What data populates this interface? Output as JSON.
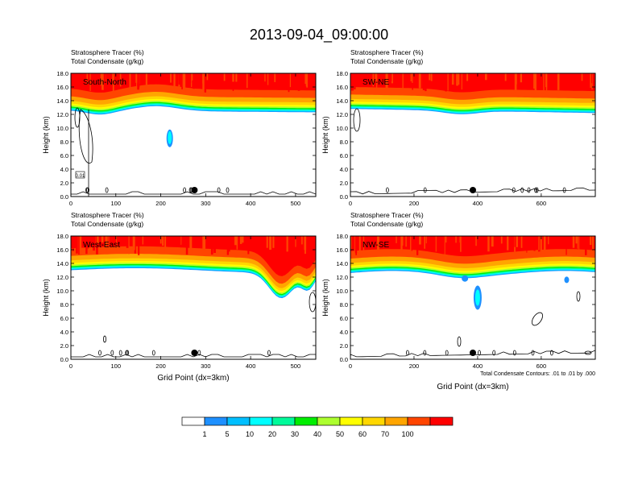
{
  "title": "2013-09-04_09:00:00",
  "colorbar": {
    "labels": [
      "1",
      "5",
      "10",
      "20",
      "30",
      "40",
      "50",
      "60",
      "70",
      "100"
    ],
    "colors": [
      "#ffffff",
      "#1e90ff",
      "#00bfff",
      "#00ffff",
      "#00fa9a",
      "#00ee00",
      "#adff2f",
      "#ffff00",
      "#ffd700",
      "#ffa500",
      "#ff4500",
      "#ff0000"
    ]
  },
  "chart_data": [
    {
      "type": "contour",
      "panel_label": "South-North",
      "subtitle_lines": [
        "Stratosphere Tracer   (%)",
        "Total Condensate   (g/kg)"
      ],
      "ylabel": "Height (km)",
      "xlabel": "",
      "xlim": [
        0,
        545
      ],
      "ylim": [
        0,
        18
      ],
      "xticks": [
        "0",
        "100",
        "200",
        "300",
        "400",
        "500"
      ],
      "yticks": [
        "0.0",
        "2.0",
        "4.0",
        "6.0",
        "8.0",
        "10.0",
        "12.0",
        "14.0",
        "16.0",
        "18.0"
      ],
      "contour_label": "0.01",
      "marker_x": 275
    },
    {
      "type": "contour",
      "panel_label": "SW-NE",
      "subtitle_lines": [
        "Stratosphere Tracer   (%)",
        "Total Condensate   (g/kg)"
      ],
      "ylabel": "Height (km)",
      "xlabel": "",
      "xlim": [
        0,
        770
      ],
      "ylim": [
        0,
        18
      ],
      "xticks": [
        "0",
        "200",
        "400",
        "600"
      ],
      "yticks": [
        "0.0",
        "2.0",
        "4.0",
        "6.0",
        "8.0",
        "10.0",
        "12.0",
        "14.0",
        "16.0",
        "18.0"
      ],
      "marker_x": 385
    },
    {
      "type": "contour",
      "panel_label": "West-East",
      "subtitle_lines": [
        "Stratosphere Tracer   (%)",
        "Total Condensate   (g/kg)"
      ],
      "ylabel": "Height (km)",
      "xlabel": "Grid Point (dx=3km)",
      "xlim": [
        0,
        545
      ],
      "ylim": [
        0,
        18
      ],
      "xticks": [
        "0",
        "100",
        "200",
        "300",
        "400",
        "500"
      ],
      "yticks": [
        "0.0",
        "2.0",
        "4.0",
        "6.0",
        "8.0",
        "10.0",
        "12.0",
        "14.0",
        "16.0",
        "18.0"
      ],
      "marker_x": 275
    },
    {
      "type": "contour",
      "panel_label": "NW-SE",
      "subtitle_lines": [
        "Stratosphere Tracer   (%)",
        "Total Condensate   (g/kg)"
      ],
      "ylabel": "Height (km)",
      "xlabel": "Grid Point (dx=3km)",
      "xlim": [
        0,
        770
      ],
      "ylim": [
        0,
        18
      ],
      "xticks": [
        "0",
        "200",
        "400",
        "600"
      ],
      "yticks": [
        "0.0",
        "2.0",
        "4.0",
        "6.0",
        "8.0",
        "10.0",
        "12.0",
        "14.0",
        "16.0",
        "18.0"
      ],
      "marker_x": 385,
      "footnote": "Total Condensate Contours: .01 to .01 by .000"
    }
  ]
}
